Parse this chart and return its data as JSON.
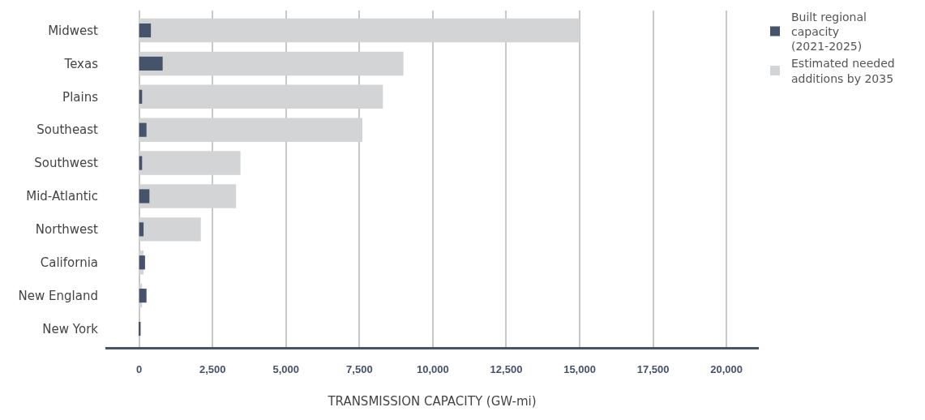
{
  "chart_data": {
    "type": "bar",
    "orientation": "horizontal",
    "xlabel": "TRANSMISSION CAPACITY (GW-mi)",
    "categories": [
      "Midwest",
      "Texas",
      "Plains",
      "Southeast",
      "Southwest",
      "Mid-Atlantic",
      "Northwest",
      "California",
      "New England",
      "New York"
    ],
    "series": [
      {
        "name": "Estimated needed additions by 2035",
        "color": "#d3d4d6",
        "values": [
          15000,
          9000,
          8300,
          7600,
          3450,
          3300,
          2100,
          150,
          100,
          0
        ]
      },
      {
        "name": "Built regional capacity (2021-2025)",
        "color": "#45536b",
        "values": [
          400,
          800,
          100,
          250,
          100,
          350,
          150,
          200,
          250,
          50
        ]
      }
    ],
    "xlim": [
      -1150,
      21100
    ],
    "xticks": [
      {
        "value": 0,
        "label": "0"
      },
      {
        "value": 2500,
        "label": "2,500"
      },
      {
        "value": 5000,
        "label": "5,000"
      },
      {
        "value": 7500,
        "label": "7,500"
      },
      {
        "value": 10000,
        "label": "10,000"
      },
      {
        "value": 12500,
        "label": "12,500"
      },
      {
        "value": 15000,
        "label": "15,000"
      },
      {
        "value": 17500,
        "label": "17,500"
      },
      {
        "value": 20000,
        "label": "20,000"
      }
    ],
    "grid": "x",
    "legend": "top right"
  }
}
